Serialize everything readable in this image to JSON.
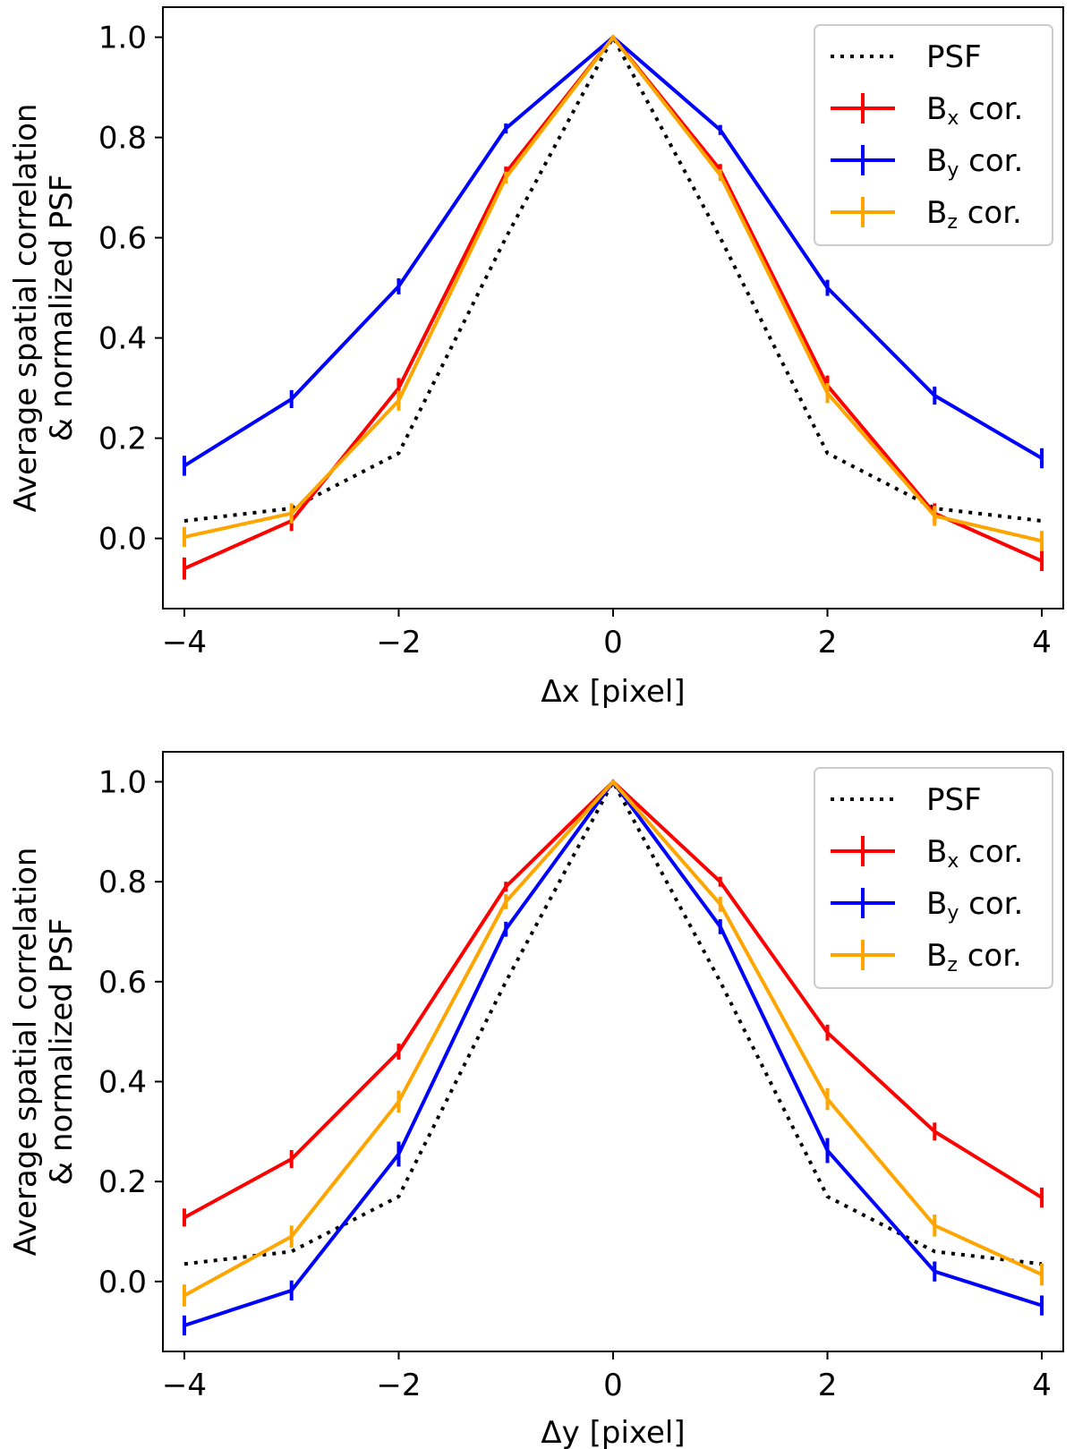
{
  "chart_data": [
    {
      "type": "line",
      "title": "",
      "xlabel": "Δx [pixel]",
      "ylabel": [
        "Average spatial correlation",
        "& normalized PSF"
      ],
      "xlim": [
        -4.2,
        4.2
      ],
      "ylim": [
        -0.14,
        1.06
      ],
      "xticks": [
        -4,
        -2,
        0,
        2,
        4
      ],
      "xtick_labels": [
        "−4",
        "−2",
        "0",
        "2",
        "4"
      ],
      "yticks": [
        0.0,
        0.2,
        0.4,
        0.6,
        0.8,
        1.0
      ],
      "ytick_labels": [
        "0.0",
        "0.2",
        "0.4",
        "0.6",
        "0.8",
        "1.0"
      ],
      "grid": false,
      "legend_position": "top-right",
      "x": [
        -4,
        -3,
        -2,
        -1,
        0,
        1,
        2,
        3,
        4
      ],
      "series": [
        {
          "name": "PSF",
          "label": "PSF",
          "sub": "",
          "style": "dotted",
          "color": "#000000",
          "values": [
            0.035,
            0.06,
            0.17,
            0.6,
            1.0,
            0.6,
            0.17,
            0.06,
            0.035
          ],
          "errors": null
        },
        {
          "name": "Bx cor.",
          "label": "B",
          "sub": "x",
          "suffix": " cor.",
          "style": "solid",
          "color": "#ff0000",
          "values": [
            -0.06,
            0.035,
            0.3,
            0.73,
            1.0,
            0.735,
            0.305,
            0.05,
            -0.045
          ],
          "errors": [
            0.022,
            0.02,
            0.02,
            0.012,
            0.003,
            0.012,
            0.02,
            0.02,
            0.02
          ]
        },
        {
          "name": "By cor.",
          "label": "B",
          "sub": "y",
          "suffix": " cor.",
          "style": "solid",
          "color": "#0000ff",
          "values": [
            0.145,
            0.278,
            0.503,
            0.818,
            1.0,
            0.815,
            0.5,
            0.285,
            0.16
          ],
          "errors": [
            0.02,
            0.018,
            0.016,
            0.01,
            0.003,
            0.01,
            0.016,
            0.018,
            0.02
          ]
        },
        {
          "name": "Bz cor.",
          "label": "B",
          "sub": "z",
          "suffix": " cor.",
          "style": "solid",
          "color": "#ffa500",
          "values": [
            0.003,
            0.05,
            0.275,
            0.72,
            1.0,
            0.725,
            0.29,
            0.045,
            -0.005
          ],
          "errors": [
            0.02,
            0.02,
            0.02,
            0.012,
            0.003,
            0.012,
            0.02,
            0.02,
            0.02
          ]
        }
      ]
    },
    {
      "type": "line",
      "title": "",
      "xlabel": "Δy [pixel]",
      "ylabel": [
        "Average spatial correlation",
        "& normalized PSF"
      ],
      "xlim": [
        -4.2,
        4.2
      ],
      "ylim": [
        -0.14,
        1.06
      ],
      "xticks": [
        -4,
        -2,
        0,
        2,
        4
      ],
      "xtick_labels": [
        "−4",
        "−2",
        "0",
        "2",
        "4"
      ],
      "yticks": [
        0.0,
        0.2,
        0.4,
        0.6,
        0.8,
        1.0
      ],
      "ytick_labels": [
        "0.0",
        "0.2",
        "0.4",
        "0.6",
        "0.8",
        "1.0"
      ],
      "grid": false,
      "legend_position": "top-right",
      "x": [
        -4,
        -3,
        -2,
        -1,
        0,
        1,
        2,
        3,
        4
      ],
      "series": [
        {
          "name": "PSF",
          "label": "PSF",
          "sub": "",
          "style": "dotted",
          "color": "#000000",
          "values": [
            0.035,
            0.06,
            0.17,
            0.6,
            1.0,
            0.6,
            0.17,
            0.06,
            0.035
          ],
          "errors": null
        },
        {
          "name": "Bx cor.",
          "label": "B",
          "sub": "x",
          "suffix": " cor.",
          "style": "solid",
          "color": "#ff0000",
          "values": [
            0.128,
            0.245,
            0.46,
            0.79,
            1.0,
            0.8,
            0.498,
            0.3,
            0.168
          ],
          "errors": [
            0.018,
            0.018,
            0.016,
            0.01,
            0.003,
            0.01,
            0.016,
            0.018,
            0.02
          ]
        },
        {
          "name": "By cor.",
          "label": "B",
          "sub": "y",
          "suffix": " cor.",
          "style": "solid",
          "color": "#0000ff",
          "values": [
            -0.088,
            -0.018,
            0.255,
            0.705,
            1.0,
            0.71,
            0.262,
            0.02,
            -0.048
          ],
          "errors": [
            0.02,
            0.02,
            0.025,
            0.015,
            0.003,
            0.015,
            0.025,
            0.02,
            0.02
          ]
        },
        {
          "name": "Bz cor.",
          "label": "B",
          "sub": "z",
          "suffix": " cor.",
          "style": "solid",
          "color": "#ffa500",
          "values": [
            -0.028,
            0.09,
            0.36,
            0.76,
            1.0,
            0.755,
            0.365,
            0.112,
            0.014
          ],
          "errors": [
            0.022,
            0.022,
            0.022,
            0.015,
            0.003,
            0.015,
            0.022,
            0.022,
            0.022
          ]
        }
      ]
    }
  ]
}
